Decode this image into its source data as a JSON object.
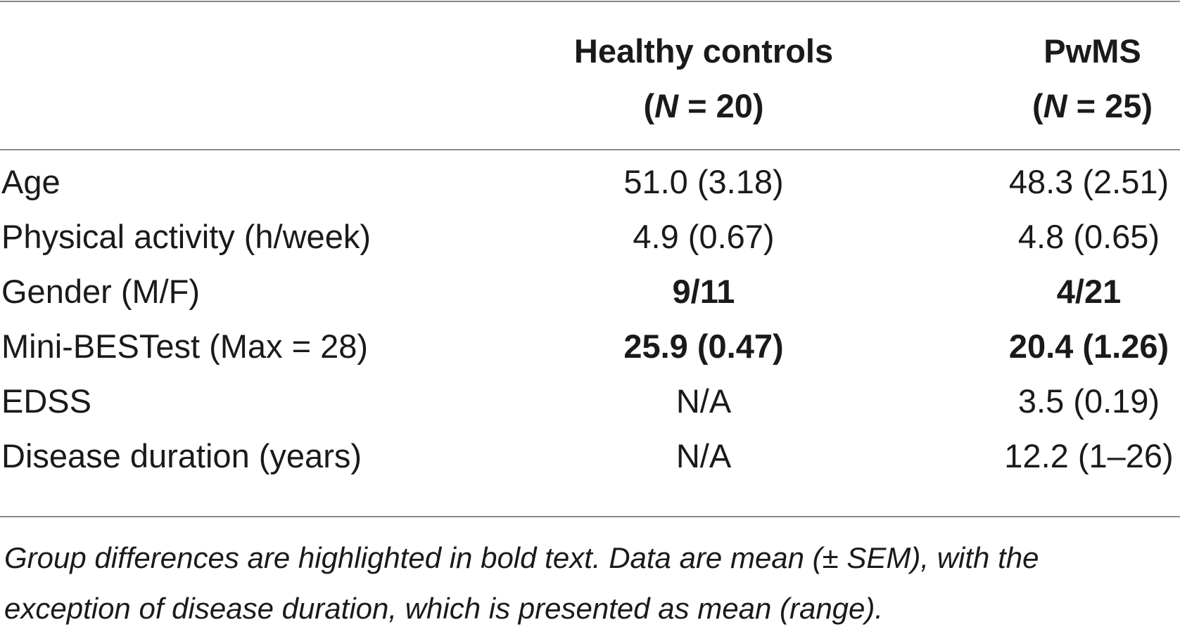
{
  "table": {
    "headers": {
      "healthy_controls": {
        "title": "Healthy controls",
        "n_open": "(",
        "n_var": "N",
        "n_rest": " = 20)"
      },
      "pwms": {
        "title": "PwMS",
        "n_open": "(",
        "n_var": "N",
        "n_rest": " = 25)"
      }
    },
    "rows": [
      {
        "label": "Age",
        "healthy_controls": "51.0 (3.18)",
        "pwms": "48.3 (2.51)",
        "bold": false
      },
      {
        "label": "Physical activity (h/week)",
        "healthy_controls": "4.9 (0.67)",
        "pwms": "4.8 (0.65)",
        "bold": false
      },
      {
        "label": "Gender (M/F)",
        "healthy_controls": "9/11",
        "pwms": "4/21",
        "bold": true
      },
      {
        "label": "Mini-BESTest (Max = 28)",
        "healthy_controls": "25.9 (0.47)",
        "pwms": "20.4 (1.26)",
        "bold": true
      },
      {
        "label": "EDSS",
        "healthy_controls": "N/A",
        "pwms": "3.5 (0.19)",
        "bold": false
      },
      {
        "label": "Disease duration (years)",
        "healthy_controls": "N/A",
        "pwms": "12.2 (1–26)",
        "bold": false
      }
    ],
    "footnote": {
      "line1": "Group differences are highlighted in bold text. Data are mean (± SEM), with the",
      "line2": "exception of disease duration, which is presented as mean (range)."
    }
  }
}
